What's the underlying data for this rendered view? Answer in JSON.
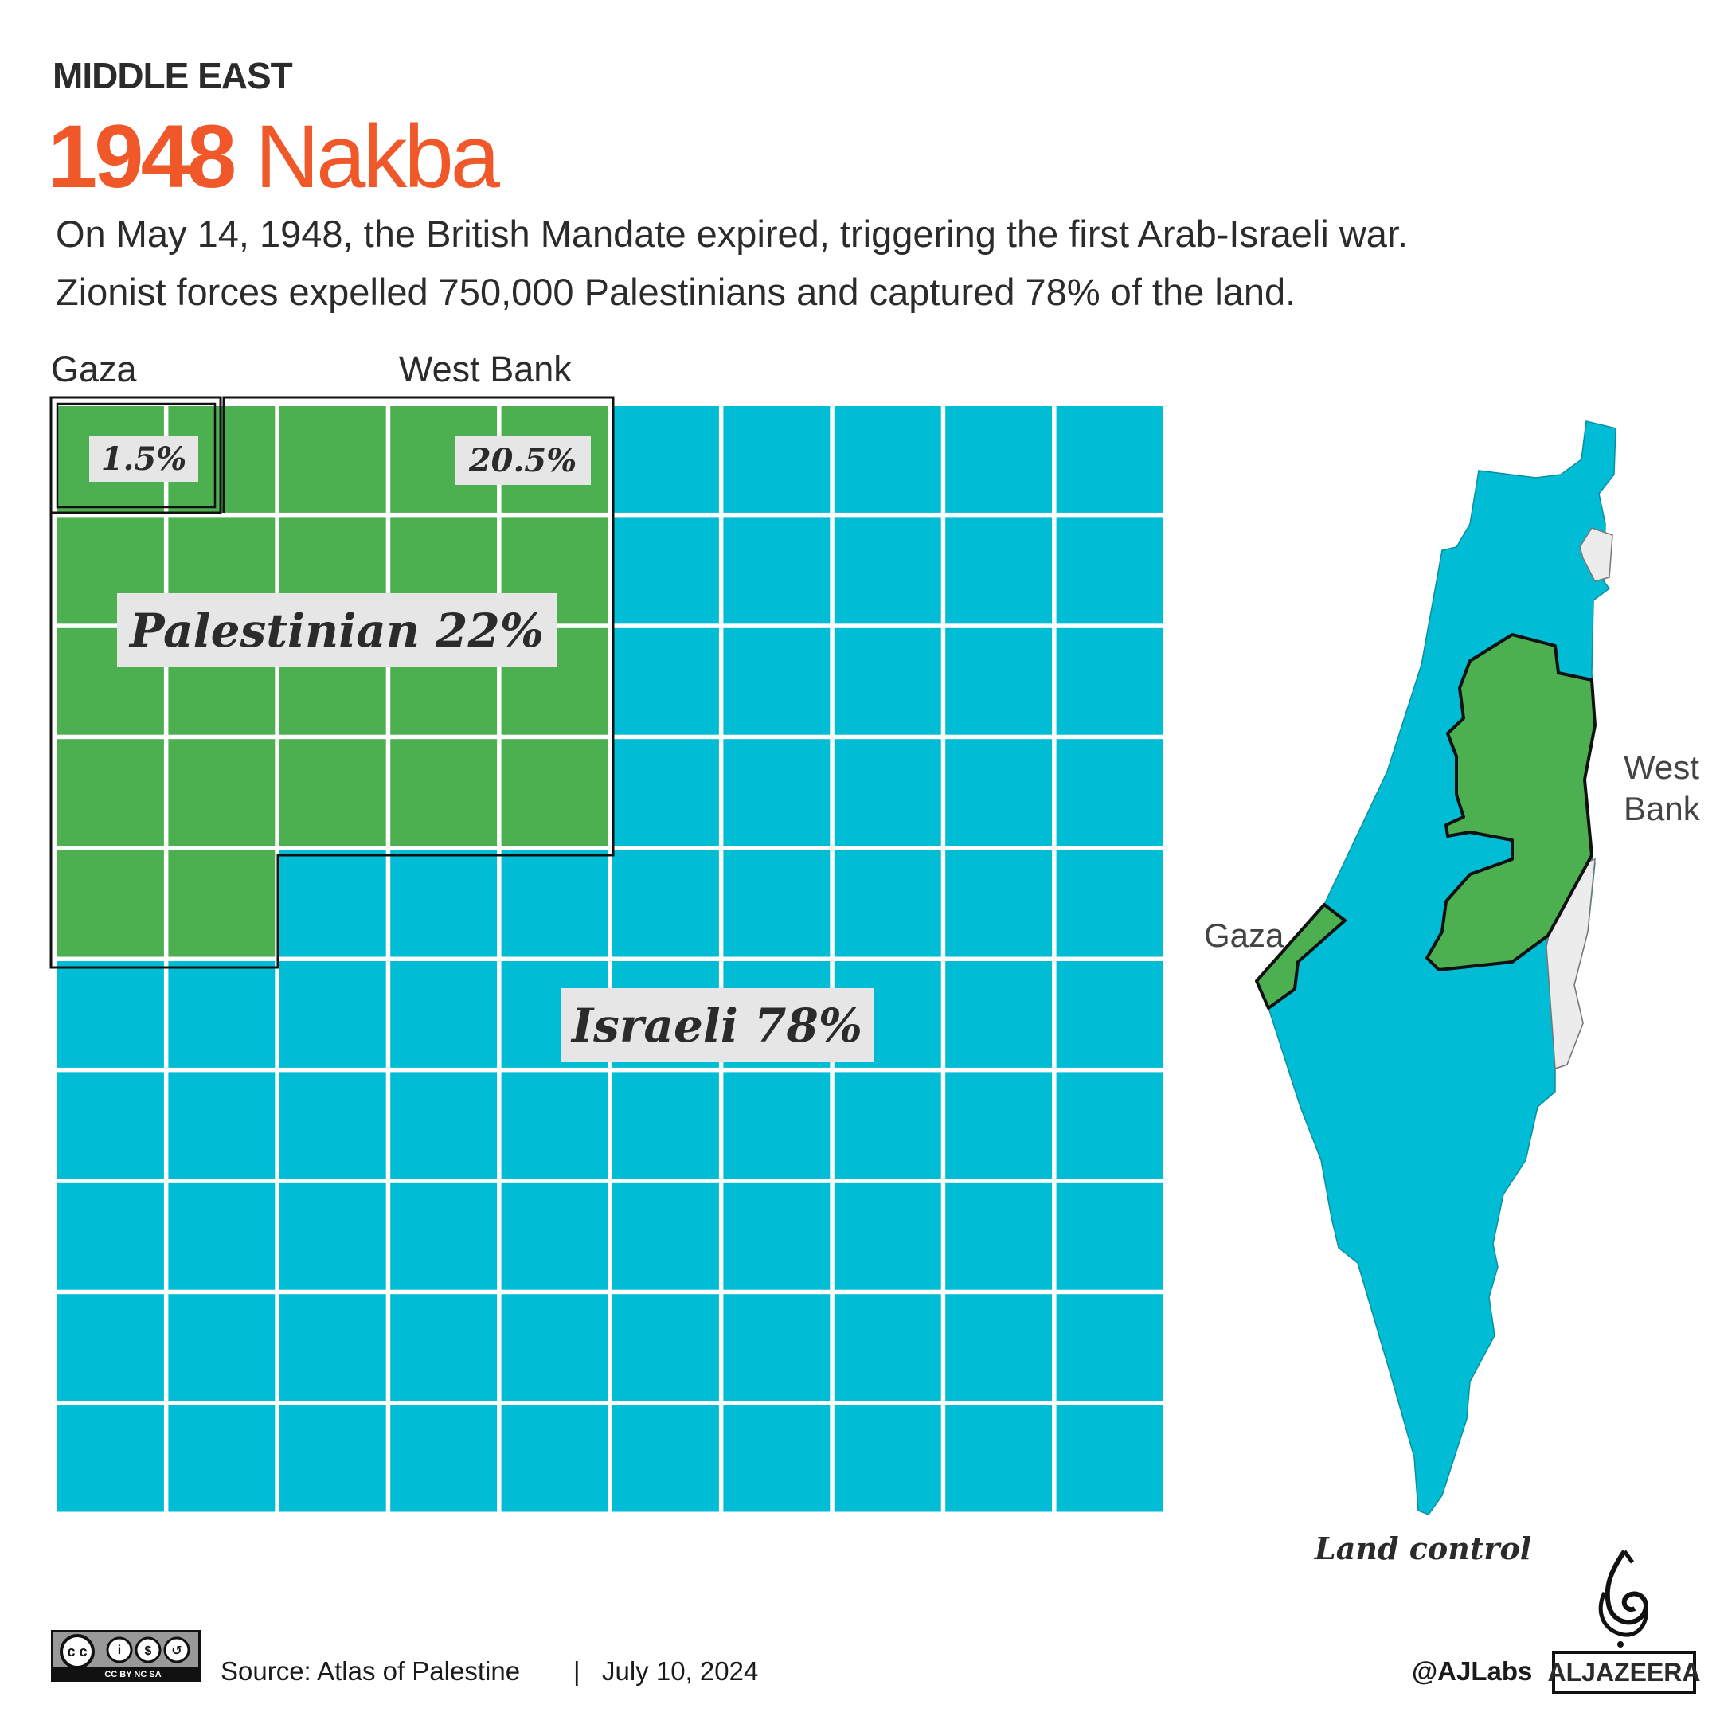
{
  "header": {
    "kicker": "MIDDLE EAST",
    "title_bold": "1948",
    "title_rest": " Nakba",
    "subtitle_line1": "On May 14, 1948, the British Mandate expired, triggering the first Arab-Israeli war.",
    "subtitle_line2": "Zionist forces expelled 750,000 Palestinians and captured 78% of the land."
  },
  "colors": {
    "title": "#f0582a",
    "israeli": "#00bcd4",
    "palestinian": "#4caf50",
    "label_bg": "#e6e6e6",
    "other_land": "#ececec"
  },
  "chart_data": {
    "type": "waffle",
    "grid": [
      10,
      10
    ],
    "categories": [
      "Palestinian",
      "Israeli"
    ],
    "values": [
      22,
      78
    ],
    "sub_regions": [
      {
        "name": "Gaza",
        "value": 1.5
      },
      {
        "name": "West Bank",
        "value": 20.5
      }
    ],
    "labels": {
      "gaza_top": "Gaza",
      "westbank_top": "West Bank",
      "gaza_pct": "1.5%",
      "westbank_pct": "20.5%",
      "palestinian": "Palestinian 22%",
      "israeli": "Israeli 78%"
    }
  },
  "map": {
    "gaza": "Gaza",
    "west_bank_line1": "West",
    "west_bank_line2": "Bank",
    "caption": "Land control"
  },
  "footer": {
    "license": "CC BY NC SA",
    "source": "Source: Atlas of Palestine",
    "separator": "|",
    "date": "July 10, 2024",
    "handle": "@AJLabs",
    "brand": "ALJAZEERA"
  }
}
